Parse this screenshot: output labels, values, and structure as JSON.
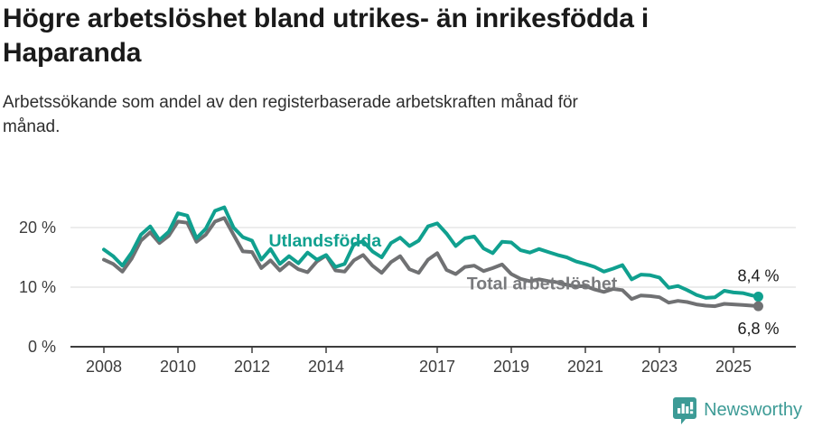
{
  "header": {
    "title": "Högre arbetslöshet bland utrikes- än inrikesfödda i\nHaparanda",
    "subtitle": "Arbetssökande som andel av den registerbaserade arbetskraften månad för\nmånad."
  },
  "footer": {
    "logo_text": "Newsworthy",
    "logo_color": "#3d9b96"
  },
  "colors": {
    "foreign_born": "#10a08f",
    "total": "#707173",
    "total_label": "#797a7d",
    "gridline": "#e0e0e0",
    "axis": "#3d3d3d",
    "axis_text": "#3d3d3d",
    "value_label": "#1a1a1a"
  },
  "chart_data": {
    "type": "line",
    "unit": "%",
    "x_ticks": [
      2008,
      2010,
      2012,
      2014,
      2017,
      2019,
      2021,
      2023,
      2025
    ],
    "y_ticks": [
      0,
      10,
      20
    ],
    "y_tick_labels": [
      "0 %",
      "10 %",
      "20 %"
    ],
    "x_range": [
      2007.1,
      2026.7
    ],
    "y_range": [
      0,
      24.2
    ],
    "grid": true,
    "x": [
      2008.0,
      2008.25,
      2008.5,
      2008.75,
      2009.0,
      2009.25,
      2009.5,
      2009.75,
      2010.0,
      2010.25,
      2010.5,
      2010.75,
      2011.0,
      2011.25,
      2011.5,
      2011.75,
      2012.0,
      2012.25,
      2012.5,
      2012.75,
      2013.0,
      2013.25,
      2013.5,
      2013.75,
      2014.0,
      2014.25,
      2014.5,
      2014.75,
      2015.0,
      2015.25,
      2015.5,
      2015.75,
      2016.0,
      2016.25,
      2016.5,
      2016.75,
      2017.0,
      2017.25,
      2017.5,
      2017.75,
      2018.0,
      2018.25,
      2018.5,
      2018.75,
      2019.0,
      2019.25,
      2019.5,
      2019.75,
      2020.0,
      2020.25,
      2020.5,
      2020.75,
      2021.0,
      2021.25,
      2021.5,
      2021.75,
      2022.0,
      2022.25,
      2022.5,
      2022.75,
      2023.0,
      2023.25,
      2023.5,
      2023.75,
      2024.0,
      2024.25,
      2024.5,
      2024.75,
      2025.0,
      2025.25,
      2025.5,
      2025.67
    ],
    "series": [
      {
        "name": "Utlandsfödda",
        "color_key": "foreign_born",
        "values": [
          16.3,
          15.2,
          13.6,
          15.8,
          18.8,
          20.2,
          17.9,
          19.3,
          22.4,
          22.0,
          18.2,
          19.8,
          22.8,
          23.4,
          20.0,
          18.4,
          17.8,
          14.6,
          16.4,
          13.9,
          15.2,
          14.0,
          15.8,
          14.6,
          15.4,
          13.4,
          13.9,
          17.2,
          17.7,
          16.0,
          15.0,
          17.4,
          18.3,
          16.9,
          17.8,
          20.2,
          20.7,
          19.0,
          16.9,
          18.2,
          18.5,
          16.5,
          15.7,
          17.6,
          17.5,
          16.2,
          15.8,
          16.4,
          15.9,
          15.4,
          15.0,
          14.3,
          13.9,
          13.4,
          12.6,
          13.1,
          13.7,
          11.3,
          12.1,
          12.0,
          11.6,
          9.9,
          10.2,
          9.5,
          8.7,
          8.2,
          8.3,
          9.4,
          9.1,
          9.0,
          8.6,
          8.4
        ],
        "end_value": 8.4,
        "end_label": "8,4 %",
        "label_pos": {
          "x": 2013.97,
          "y": 17.7
        }
      },
      {
        "name": "Total arbetslöshet",
        "color_key": "total",
        "values": [
          14.6,
          13.9,
          12.6,
          14.8,
          17.8,
          19.2,
          17.4,
          18.6,
          21.0,
          20.8,
          17.6,
          18.8,
          21.0,
          21.6,
          18.8,
          16.0,
          15.9,
          13.2,
          14.5,
          12.8,
          14.1,
          13.0,
          12.5,
          14.3,
          15.3,
          12.8,
          12.6,
          14.5,
          15.4,
          13.6,
          12.4,
          14.2,
          15.2,
          13.0,
          12.4,
          14.6,
          15.7,
          12.9,
          12.2,
          13.4,
          13.6,
          12.7,
          13.2,
          13.8,
          12.2,
          11.4,
          11.0,
          11.3,
          11.0,
          10.8,
          10.4,
          10.1,
          10.2,
          9.6,
          9.2,
          9.7,
          9.5,
          8.0,
          8.6,
          8.5,
          8.3,
          7.4,
          7.7,
          7.5,
          7.1,
          6.9,
          6.8,
          7.2,
          7.1,
          7.0,
          6.9,
          6.8
        ],
        "end_value": 6.8,
        "end_label": "6,8 %",
        "label_pos": {
          "x": 2019.83,
          "y": 10.5
        }
      }
    ]
  }
}
